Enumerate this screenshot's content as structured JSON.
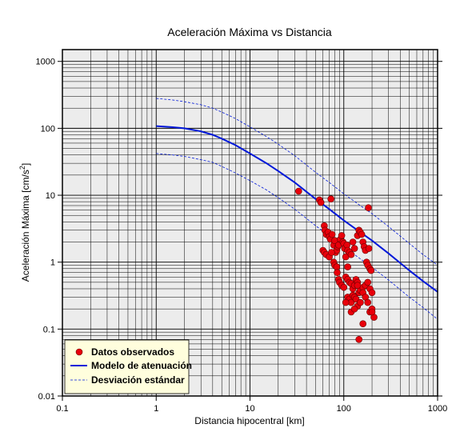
{
  "chart_data": {
    "type": "scatter",
    "title": "Aceleración Máxima vs Distancia",
    "xlabel": "Distancia hipocentral [km]",
    "ylabel_main": "Aceleración Máxima [cm/s",
    "ylabel_sup": "2",
    "ylabel_end": "]",
    "x_scale": "log",
    "y_scale": "log",
    "xlim": [
      0.1,
      1000
    ],
    "ylim": [
      0.01,
      1500
    ],
    "x_ticks": [
      0.1,
      1,
      10,
      100,
      1000
    ],
    "x_tick_labels": [
      "0.1",
      "1",
      "10",
      "100",
      "1000"
    ],
    "y_ticks": [
      0.01,
      0.1,
      1,
      10,
      100,
      1000
    ],
    "y_tick_labels": [
      "0.01",
      "0.1",
      "1",
      "10",
      "100",
      "1000"
    ],
    "grid": true,
    "legend_position": "bottom-left",
    "series": [
      {
        "name": "Datos observados",
        "kind": "points",
        "color": "#e8000b",
        "x": [
          33,
          55,
          57,
          73,
          183,
          62,
          63,
          65,
          68,
          70,
          72,
          75,
          78,
          80,
          82,
          84,
          86,
          60,
          62,
          65,
          70,
          74,
          78,
          80,
          84,
          88,
          92,
          95,
          98,
          100,
          102,
          105,
          108,
          110,
          115,
          120,
          125,
          130,
          140,
          145,
          150,
          155,
          160,
          165,
          170,
          175,
          180,
          185,
          190,
          195,
          85,
          88,
          90,
          95,
          100,
          105,
          110,
          115,
          120,
          125,
          130,
          135,
          140,
          145,
          150,
          160,
          170,
          180,
          190,
          200,
          110,
          115,
          120,
          125,
          130,
          135,
          140,
          150,
          160,
          170,
          180,
          190,
          200,
          210,
          160,
          200,
          145,
          120,
          130,
          105,
          140,
          110
        ],
        "y": [
          11.5,
          8.5,
          7.8,
          8.8,
          6.5,
          3.5,
          3.0,
          2.6,
          2.8,
          2.4,
          2.2,
          2.6,
          1.8,
          2.1,
          1.4,
          1.5,
          1.7,
          1.5,
          1.4,
          1.3,
          1.2,
          1.4,
          1.0,
          0.9,
          0.85,
          1.8,
          2.2,
          2.5,
          2.0,
          1.9,
          1.6,
          1.2,
          1.8,
          1.5,
          1.4,
          1.3,
          2.0,
          1.6,
          2.5,
          3.0,
          2.8,
          2.6,
          2.0,
          1.7,
          1.5,
          1.0,
          0.9,
          1.6,
          0.8,
          0.75,
          0.7,
          0.55,
          0.5,
          0.45,
          0.42,
          0.6,
          0.55,
          0.5,
          0.48,
          0.4,
          0.45,
          0.55,
          0.5,
          0.35,
          0.38,
          0.42,
          0.45,
          0.5,
          0.4,
          0.35,
          0.3,
          0.28,
          0.25,
          0.32,
          0.3,
          0.28,
          0.22,
          0.25,
          0.35,
          0.3,
          0.25,
          0.18,
          0.2,
          0.15,
          0.12,
          0.18,
          0.07,
          0.18,
          0.2,
          0.25,
          0.45,
          0.85
        ]
      },
      {
        "name": "Modelo de atenuación",
        "kind": "line",
        "color": "#0018d9",
        "x": [
          1,
          1.5,
          2,
          3,
          4,
          5,
          7,
          10,
          15,
          20,
          30,
          50,
          70,
          100,
          150,
          200,
          300,
          500,
          700,
          1000
        ],
        "y": [
          108,
          104,
          100,
          90,
          80,
          70,
          56,
          42,
          30,
          23,
          15.5,
          8.8,
          6.2,
          4.2,
          2.8,
          2.1,
          1.35,
          0.75,
          0.52,
          0.36
        ]
      },
      {
        "name": "Desviación estándar",
        "kind": "dashed",
        "color": "#0018d9",
        "x": [
          1,
          1.5,
          2,
          3,
          4,
          5,
          7,
          10,
          15,
          20,
          30,
          50,
          70,
          100,
          150,
          200,
          300,
          500,
          700,
          1000
        ],
        "y": [
          280,
          265,
          250,
          225,
          200,
          175,
          140,
          105,
          75,
          58,
          39,
          22,
          15.5,
          10.5,
          7.0,
          5.3,
          3.4,
          1.9,
          1.3,
          0.9
        ]
      },
      {
        "name": "",
        "kind": "dashed",
        "color": "#0018d9",
        "x": [
          1,
          1.5,
          2,
          3,
          4,
          5,
          7,
          10,
          15,
          20,
          30,
          50,
          70,
          100,
          150,
          200,
          300,
          500,
          700,
          1000
        ],
        "y": [
          42,
          40,
          38,
          34,
          31,
          27,
          21.5,
          16.5,
          12,
          9.2,
          6.2,
          3.5,
          2.5,
          1.7,
          1.12,
          0.84,
          0.54,
          0.3,
          0.21,
          0.14
        ]
      }
    ]
  },
  "legend": {
    "items": [
      "Datos observados",
      "Modelo de atenuación",
      "Desviación estándar"
    ],
    "background": "#fffedd"
  },
  "colors": {
    "plot_background": "#ececec",
    "grid": "#000000"
  }
}
